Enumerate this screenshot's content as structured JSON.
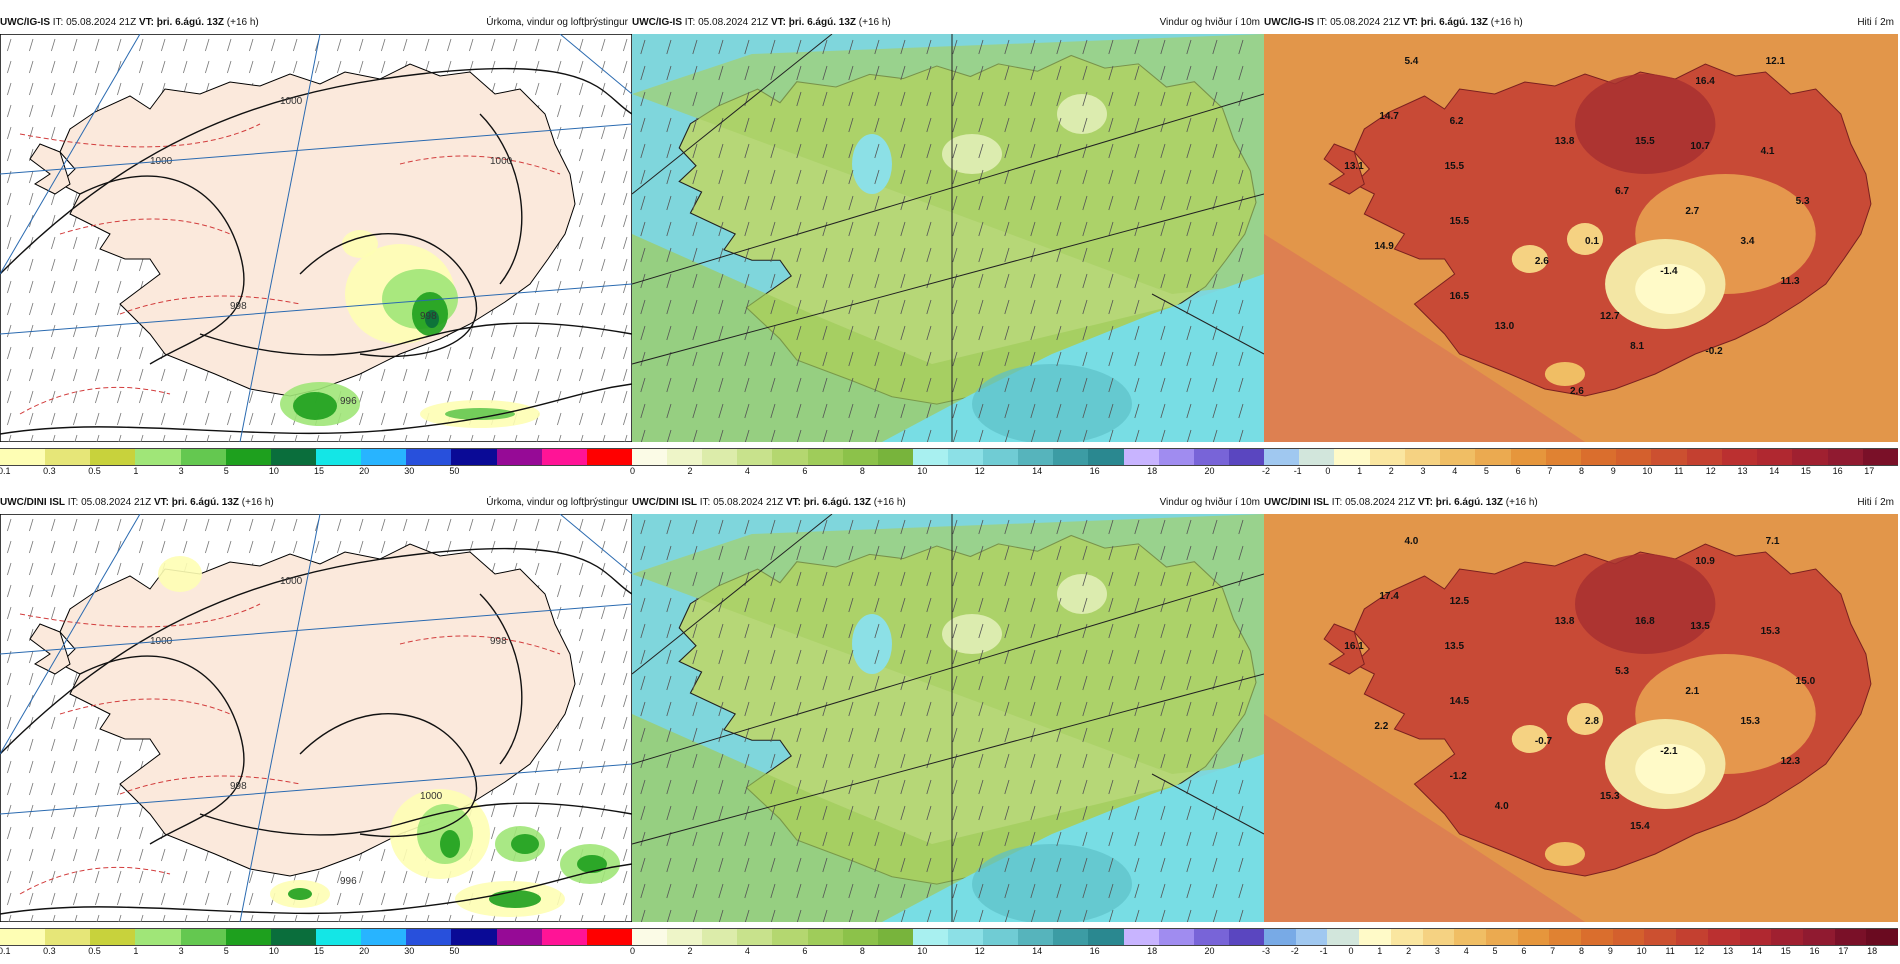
{
  "panels": [
    {
      "id": "top-precip",
      "model": "UWC/IG-IS",
      "it_label": "IT:",
      "it_value": "05.08.2024 21Z",
      "vt_label": "VT:",
      "vt_value": "þri. 6.ágú. 13Z",
      "lead": "(+16 h)",
      "field": "Úrkoma, vindur og loftþrýstingur",
      "scale_colors": [
        "#fefeb4",
        "#e6e678",
        "#c8d23c",
        "#a0e678",
        "#64c850",
        "#1ea01e",
        "#0a6e3c",
        "#14e6e6",
        "#28b4ff",
        "#2850dc",
        "#0a0a96",
        "#960a96",
        "#ff1496",
        "#ff0000"
      ],
      "ticks": [
        "0.1",
        "0.3",
        "0.5",
        "1",
        "3",
        "5",
        "10",
        "15",
        "20",
        "30",
        "50"
      ],
      "isobars": [
        "1000",
        "1000",
        "1000",
        "998",
        "996",
        "998"
      ]
    },
    {
      "id": "top-wind",
      "model": "UWC/IG-IS",
      "it_label": "IT:",
      "it_value": "05.08.2024 21Z",
      "vt_label": "VT:",
      "vt_value": "þri. 6.ágú. 13Z",
      "lead": "(+16 h)",
      "field": "Vindur og hviður í 10m",
      "scale_colors": [
        "#fbfbe6",
        "#eef5c8",
        "#dcecaa",
        "#c8e28c",
        "#b4d770",
        "#9fcc5a",
        "#8cc24a",
        "#78b43c",
        "#a8f0f0",
        "#8ce0e6",
        "#70ccd4",
        "#56b4bc",
        "#3c9ca4",
        "#2a8890",
        "#c8b4ff",
        "#a08cf0",
        "#7864d8",
        "#5a46c0"
      ],
      "ticks": [
        "0",
        "2",
        "4",
        "6",
        "8",
        "10",
        "12",
        "14",
        "16",
        "18",
        "20"
      ]
    },
    {
      "id": "top-temp",
      "model": "UWC/IG-IS",
      "it_label": "IT:",
      "it_value": "05.08.2024 21Z",
      "vt_label": "VT:",
      "vt_value": "þri. 6.ágú. 13Z",
      "lead": "(+16 h)",
      "field": "Hiti í 2m",
      "scale_colors": [
        "#a0c8f0",
        "#d2e6dc",
        "#fffac8",
        "#fae6a0",
        "#f5d282",
        "#f0be64",
        "#ebaa50",
        "#e6963c",
        "#e08232",
        "#da6e2d",
        "#d4602d",
        "#cc5030",
        "#c44030",
        "#bb3030",
        "#b02830",
        "#a02030",
        "#901a30",
        "#7a1028"
      ],
      "ticks": [
        "-2",
        "-1",
        "0",
        "1",
        "2",
        "3",
        "4",
        "5",
        "6",
        "7",
        "8",
        "9",
        "10",
        "11",
        "12",
        "13",
        "14",
        "15",
        "16",
        "17"
      ],
      "values": [
        "5.4",
        "12.1",
        "16.4",
        "14.7",
        "6.2",
        "13.8",
        "15.5",
        "10.7",
        "4.1",
        "13.1",
        "15.5",
        "6.7",
        "5.3",
        "2.7",
        "15.5",
        "14.9",
        "2.6",
        "0.1",
        "-1.4",
        "3.4",
        "11.3",
        "16.5",
        "12.7",
        "13.0",
        "8.1",
        "-0.2",
        "2.6"
      ]
    },
    {
      "id": "bot-precip",
      "model": "UWC/DINI ISL",
      "it_label": "IT:",
      "it_value": "05.08.2024 21Z",
      "vt_label": "VT:",
      "vt_value": "þri. 6.ágú. 13Z",
      "lead": "(+16 h)",
      "field": "Úrkoma, vindur og loftþrýstingur",
      "scale_colors": [
        "#fefeb4",
        "#e6e678",
        "#c8d23c",
        "#a0e678",
        "#64c850",
        "#1ea01e",
        "#0a6e3c",
        "#14e6e6",
        "#28b4ff",
        "#2850dc",
        "#0a0a96",
        "#960a96",
        "#ff1496",
        "#ff0000"
      ],
      "ticks": [
        "0.1",
        "0.3",
        "0.5",
        "1",
        "3",
        "5",
        "10",
        "15",
        "20",
        "30",
        "50"
      ],
      "isobars": [
        "1000",
        "1000",
        "998",
        "998",
        "996",
        "1000"
      ]
    },
    {
      "id": "bot-wind",
      "model": "UWC/DINI ISL",
      "it_label": "IT:",
      "it_value": "05.08.2024 21Z",
      "vt_label": "VT:",
      "vt_value": "þri. 6.ágú. 13Z",
      "lead": "(+16 h)",
      "field": "Vindur og hviður í 10m",
      "scale_colors": [
        "#fbfbe6",
        "#eef5c8",
        "#dcecaa",
        "#c8e28c",
        "#b4d770",
        "#9fcc5a",
        "#8cc24a",
        "#78b43c",
        "#a8f0f0",
        "#8ce0e6",
        "#70ccd4",
        "#56b4bc",
        "#3c9ca4",
        "#2a8890",
        "#c8b4ff",
        "#a08cf0",
        "#7864d8",
        "#5a46c0"
      ],
      "ticks": [
        "0",
        "2",
        "4",
        "6",
        "8",
        "10",
        "12",
        "14",
        "16",
        "18",
        "20"
      ]
    },
    {
      "id": "bot-temp",
      "model": "UWC/DINI ISL",
      "it_label": "IT:",
      "it_value": "05.08.2024 21Z",
      "vt_label": "VT:",
      "vt_value": "þri. 6.ágú. 13Z",
      "lead": "(+16 h)",
      "field": "Hiti í 2m",
      "scale_colors": [
        "#78aae6",
        "#a0c8f0",
        "#d2e6dc",
        "#fffac8",
        "#fae6a0",
        "#f5d282",
        "#f0be64",
        "#ebaa50",
        "#e6963c",
        "#e08232",
        "#da6e2d",
        "#d4602d",
        "#cc5030",
        "#c44030",
        "#bb3030",
        "#b02830",
        "#a02030",
        "#901a30",
        "#7a1028",
        "#6a0a20"
      ],
      "ticks": [
        "-3",
        "-2",
        "-1",
        "0",
        "1",
        "2",
        "3",
        "4",
        "5",
        "6",
        "7",
        "8",
        "9",
        "10",
        "11",
        "12",
        "13",
        "14",
        "15",
        "16",
        "17",
        "18"
      ],
      "values": [
        "4.0",
        "7.1",
        "10.9",
        "17.4",
        "12.5",
        "13.8",
        "16.8",
        "13.5",
        "15.3",
        "16.1",
        "13.5",
        "5.3",
        "15.0",
        "2.1",
        "14.5",
        "2.2",
        "-0.7",
        "2.8",
        "-2.1",
        "15.3",
        "12.3",
        "-1.2",
        "15.3",
        "4.0",
        "15.4"
      ]
    }
  ]
}
